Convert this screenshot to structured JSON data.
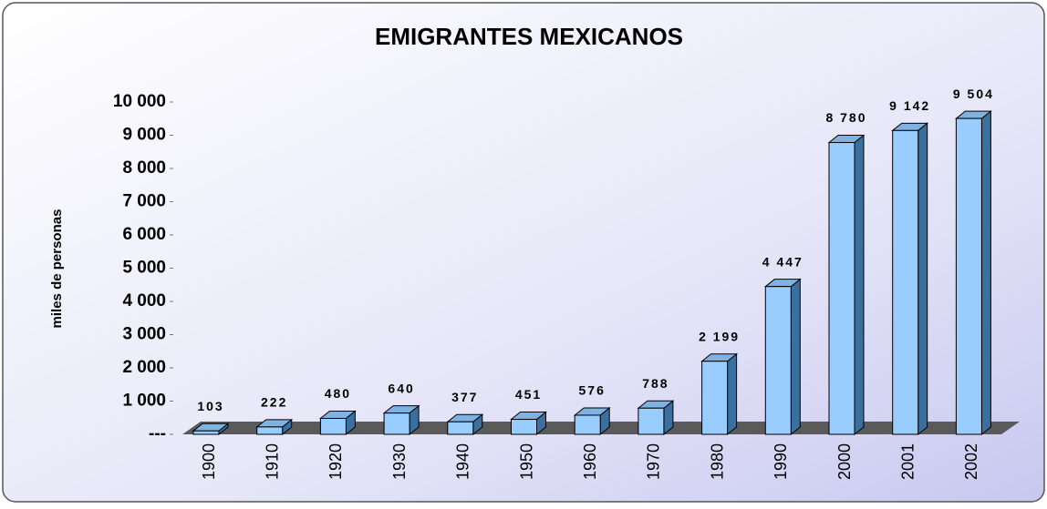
{
  "chart_data": {
    "type": "bar",
    "title": "EMIGRANTES MEXICANOS",
    "y_label": "miles de personas",
    "categories": [
      "1900",
      "1910",
      "1920",
      "1930",
      "1940",
      "1950",
      "1960",
      "1970",
      "1980",
      "1990",
      "2000",
      "2001",
      "2002"
    ],
    "values": [
      103,
      222,
      480,
      640,
      377,
      451,
      576,
      788,
      2199,
      4447,
      8780,
      9142,
      9504
    ],
    "value_labels": [
      "103",
      "222",
      "480",
      "640",
      "377",
      "451",
      "576",
      "788",
      "2 199",
      "4 447",
      "8 780",
      "9 142",
      "9 504"
    ],
    "color": "#99ccff",
    "ylim": [
      0,
      10000
    ],
    "yticks": [
      {
        "value": 0,
        "label": "---"
      },
      {
        "value": 1000,
        "label": "1 000"
      },
      {
        "value": 2000,
        "label": "2 000"
      },
      {
        "value": 3000,
        "label": "3 000"
      },
      {
        "value": 4000,
        "label": "4 000"
      },
      {
        "value": 5000,
        "label": "5 000"
      },
      {
        "value": 6000,
        "label": "6 000"
      },
      {
        "value": 7000,
        "label": "7 000"
      },
      {
        "value": 8000,
        "label": "8 000"
      },
      {
        "value": 9000,
        "label": "9 000"
      },
      {
        "value": 10000,
        "label": "10 000"
      }
    ]
  }
}
